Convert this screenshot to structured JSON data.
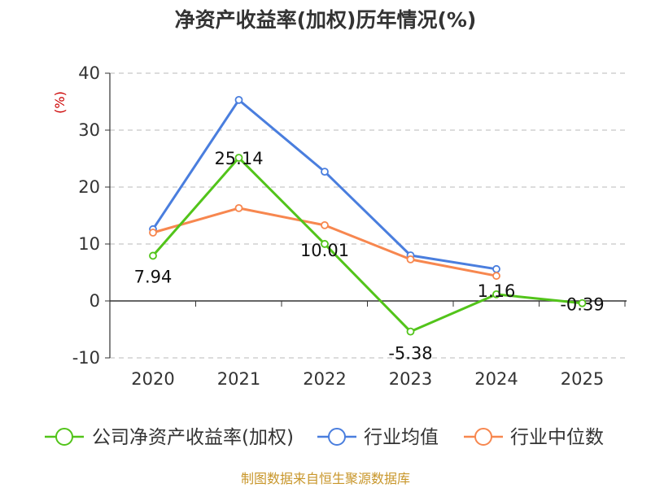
{
  "chart_data": {
    "type": "line",
    "title": "净资产收益率(加权)历年情况(%)",
    "ylabel": "(%)",
    "xlabel": "",
    "categories": [
      "2020",
      "2021",
      "2022",
      "2023",
      "2024",
      "2025"
    ],
    "ylim": [
      -10,
      40
    ],
    "yticks": [
      -10,
      0,
      10,
      20,
      30,
      40
    ],
    "grid": "horizontal-dashed",
    "legend_position": "bottom",
    "series": [
      {
        "name": "公司净资产收益率(加权)",
        "color": "#52c41a",
        "values": [
          7.94,
          25.14,
          10.01,
          -5.38,
          1.16,
          -0.39
        ],
        "labels": [
          "7.94",
          "25.14",
          "10.01",
          "-5.38",
          "1.16",
          "-0.39"
        ]
      },
      {
        "name": "行业均值",
        "color": "#4a7ede",
        "values": [
          12.6,
          35.3,
          22.7,
          8.0,
          5.6,
          null
        ]
      },
      {
        "name": "行业中位数",
        "color": "#f7874f",
        "values": [
          12.0,
          16.3,
          13.3,
          7.3,
          4.4,
          null
        ]
      }
    ]
  },
  "source": "制图数据来自恒生聚源数据库"
}
